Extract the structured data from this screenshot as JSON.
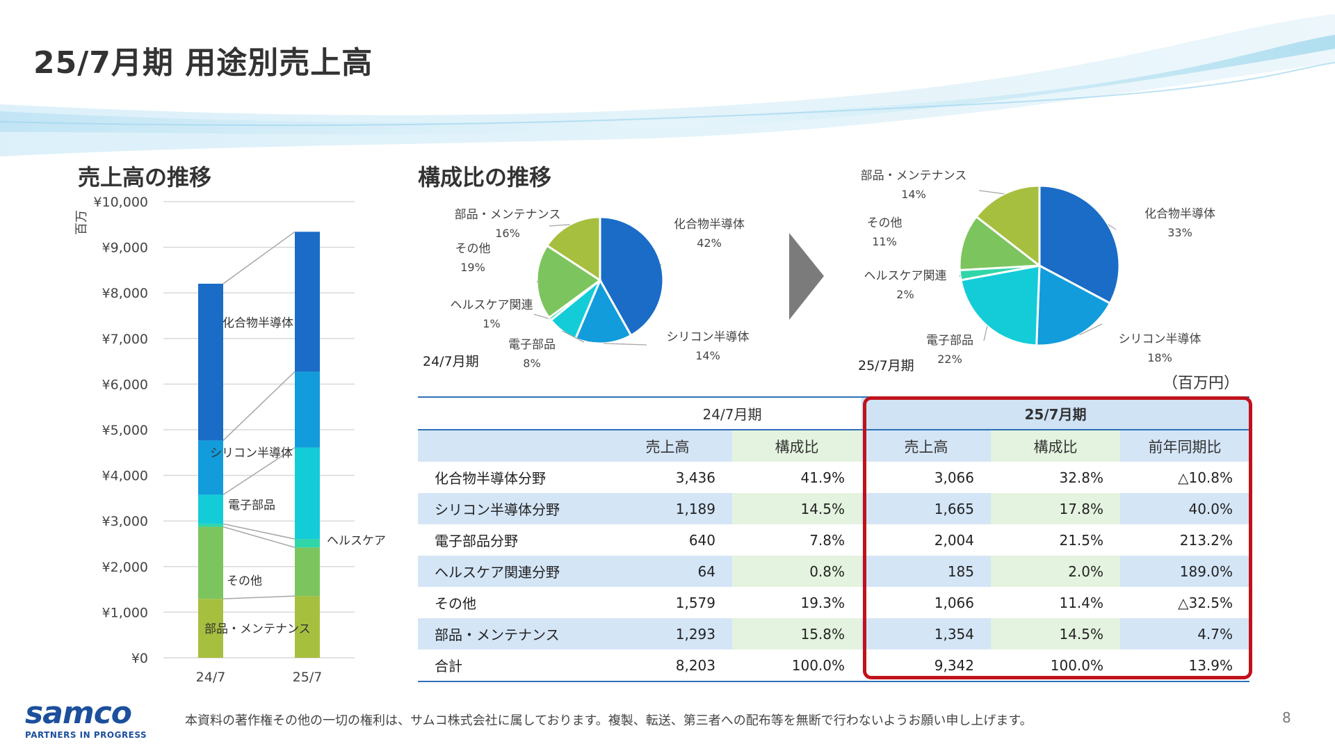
{
  "page": {
    "title": "25/7月期 用途別売上高",
    "page_number": "8",
    "footer_note": "本資料の著作権その他の一切の権利は、サムコ株式会社に属しております。複製、転送、第三者への配布等を無断で行わないようお願い申し上げます。",
    "logo_text": "samco",
    "logo_tagline": "PARTNERS IN PROGRESS"
  },
  "sections": {
    "left_title": "売上高の推移",
    "right_title": "構成比の推移"
  },
  "colors": {
    "化合物半導体": "#1a6cc6",
    "シリコン半導体": "#129cdb",
    "電子部品": "#14ccd8",
    "ヘルスケア関連": "#2fd6a8",
    "その他": "#7cc55e",
    "部品・メンテナンス": "#a7bf3f"
  },
  "chart_data": [
    {
      "type": "bar",
      "stacked": true,
      "ylabel": "百万",
      "ylim": [
        0,
        10000
      ],
      "yticks": [
        "¥0",
        "¥1,000",
        "¥2,000",
        "¥3,000",
        "¥4,000",
        "¥5,000",
        "¥6,000",
        "¥7,000",
        "¥8,000",
        "¥9,000",
        "¥10,000"
      ],
      "categories": [
        "24/7",
        "25/7"
      ],
      "series": [
        {
          "name": "部品・メンテナンス",
          "values": [
            1293,
            1354
          ]
        },
        {
          "name": "その他",
          "values": [
            1579,
            1066
          ]
        },
        {
          "name": "ヘルスケア",
          "values": [
            64,
            185
          ]
        },
        {
          "name": "電子部品",
          "values": [
            640,
            2004
          ]
        },
        {
          "name": "シリコン半導体",
          "values": [
            1189,
            1665
          ]
        },
        {
          "name": "化合物半導体",
          "values": [
            3436,
            3066
          ]
        }
      ],
      "grid": true
    },
    {
      "type": "pie",
      "period_label": "24/7月期",
      "slices": [
        {
          "name": "化合物半導体",
          "percent_label": "42%",
          "value": 41.9
        },
        {
          "name": "シリコン半導体",
          "percent_label": "14%",
          "value": 14.5
        },
        {
          "name": "電子部品",
          "percent_label": "8%",
          "value": 7.8
        },
        {
          "name": "ヘルスケア関連",
          "percent_label": "1%",
          "value": 0.8
        },
        {
          "name": "その他",
          "percent_label": "19%",
          "value": 19.3
        },
        {
          "name": "部品・メンテナンス",
          "percent_label": "16%",
          "value": 15.8
        }
      ]
    },
    {
      "type": "pie",
      "period_label": "25/7月期",
      "slices": [
        {
          "name": "化合物半導体",
          "percent_label": "33%",
          "value": 32.8
        },
        {
          "name": "シリコン半導体",
          "percent_label": "18%",
          "value": 17.8
        },
        {
          "name": "電子部品",
          "percent_label": "22%",
          "value": 21.5
        },
        {
          "name": "ヘルスケア関連",
          "percent_label": "2%",
          "value": 2.0
        },
        {
          "name": "その他",
          "percent_label": "11%",
          "value": 11.4
        },
        {
          "name": "部品・メンテナンス",
          "percent_label": "14%",
          "value": 14.5
        }
      ]
    },
    {
      "type": "table",
      "unit": "（百万円）",
      "period_prev": "24/7月期",
      "period_curr": "25/7月期",
      "columns": [
        "売上高",
        "構成比",
        "売上高",
        "構成比",
        "前年同期比"
      ],
      "rows": [
        {
          "label": "化合物半導体分野",
          "values": [
            "3,436",
            "41.9%",
            "3,066",
            "32.8%",
            "△10.8%"
          ]
        },
        {
          "label": "シリコン半導体分野",
          "values": [
            "1,189",
            "14.5%",
            "1,665",
            "17.8%",
            "40.0%"
          ]
        },
        {
          "label": "電子部品分野",
          "values": [
            "640",
            "7.8%",
            "2,004",
            "21.5%",
            "213.2%"
          ]
        },
        {
          "label": "ヘルスケア関連分野",
          "values": [
            "64",
            "0.8%",
            "185",
            "2.0%",
            "189.0%"
          ]
        },
        {
          "label": "その他",
          "values": [
            "1,579",
            "19.3%",
            "1,066",
            "11.4%",
            "△32.5%"
          ]
        },
        {
          "label": "部品・メンテナンス",
          "values": [
            "1,293",
            "15.8%",
            "1,354",
            "14.5%",
            "4.7%"
          ]
        },
        {
          "label": "合計",
          "values": [
            "8,203",
            "100.0%",
            "9,342",
            "100.0%",
            "13.9%"
          ]
        }
      ]
    }
  ]
}
